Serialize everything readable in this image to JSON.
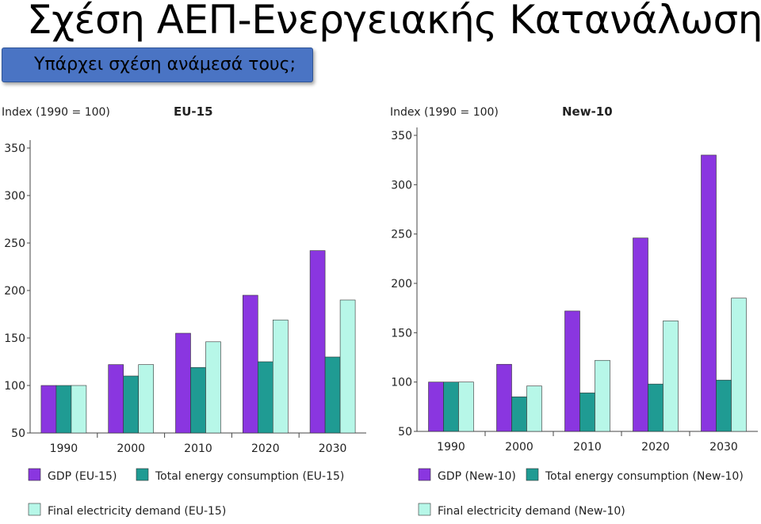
{
  "slide": {
    "title": "Σχέση ΑΕΠ-Ενεργειακής Κατανάλωσης",
    "subtitle": "Υπάρχει σχέση ανάμεσά τους;"
  },
  "colors": {
    "gdp": "#8a36e0",
    "energy": "#1f9b93",
    "electricity": "#b7f7e8",
    "subtitle_box": "#4a74c4"
  },
  "chart_data": [
    {
      "type": "bar",
      "title": "EU-15",
      "ylabel": "Index (1990 = 100)",
      "ylim": [
        50,
        350
      ],
      "yticks": [
        50,
        100,
        150,
        200,
        250,
        300,
        350
      ],
      "categories": [
        "1990",
        "2000",
        "2010",
        "2020",
        "2030"
      ],
      "series": [
        {
          "name": "GDP (EU-15)",
          "values": [
            100,
            122,
            155,
            195,
            242
          ]
        },
        {
          "name": "Total energy consumption (EU-15)",
          "values": [
            100,
            110,
            119,
            125,
            130
          ]
        },
        {
          "name": "Final electricity demand (EU-15)",
          "values": [
            100,
            122,
            146,
            169,
            190
          ]
        }
      ],
      "legend_position": "bottom",
      "grid": false
    },
    {
      "type": "bar",
      "title": "New-10",
      "ylabel": "Index (1990 = 100)",
      "ylim": [
        50,
        350
      ],
      "yticks": [
        50,
        100,
        150,
        200,
        250,
        300,
        350
      ],
      "categories": [
        "1990",
        "2000",
        "2010",
        "2020",
        "2030"
      ],
      "series": [
        {
          "name": "GDP (New-10)",
          "values": [
            100,
            118,
            172,
            246,
            330
          ]
        },
        {
          "name": "Total energy consumption (New-10)",
          "values": [
            100,
            85,
            89,
            98,
            102
          ]
        },
        {
          "name": "Final electricity demand (New-10)",
          "values": [
            100,
            96,
            122,
            162,
            185
          ]
        }
      ],
      "legend_position": "bottom",
      "grid": false
    }
  ]
}
